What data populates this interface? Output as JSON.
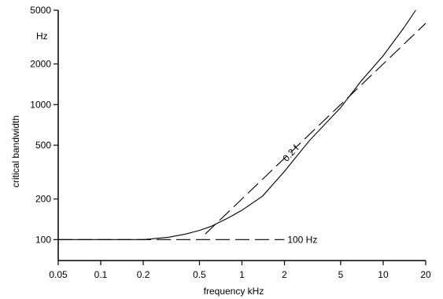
{
  "chart_data": {
    "type": "line",
    "title": "",
    "xlabel": "frequency  kHz",
    "ylabel": "critical bandwidth",
    "y_unit": "Hz",
    "x_scale": "log",
    "y_scale": "log",
    "xlim": [
      0.05,
      20
    ],
    "ylim": [
      70,
      5000
    ],
    "x_ticks": [
      0.05,
      0.1,
      0.2,
      0.5,
      1,
      2,
      5,
      10,
      20
    ],
    "x_tick_labels": [
      "0.05",
      "0.1",
      "0.2",
      "0.5",
      "1",
      "2",
      "5",
      "10",
      "20"
    ],
    "y_ticks": [
      100,
      200,
      500,
      1000,
      2000,
      5000
    ],
    "y_tick_labels": [
      "100",
      "200",
      "500",
      "1000",
      "2000",
      "5000"
    ],
    "grid": false,
    "legend": "none",
    "series": [
      {
        "style": "solid",
        "points": [
          [
            0.05,
            100
          ],
          [
            0.1,
            100
          ],
          [
            0.2,
            100
          ],
          [
            0.3,
            104
          ],
          [
            0.4,
            110
          ],
          [
            0.5,
            117
          ],
          [
            0.6,
            125
          ],
          [
            0.8,
            145
          ],
          [
            1.0,
            165
          ],
          [
            1.4,
            210
          ],
          [
            2.0,
            320
          ],
          [
            3.0,
            540
          ],
          [
            5.0,
            950
          ],
          [
            7.0,
            1500
          ],
          [
            10.0,
            2300
          ],
          [
            14.0,
            3700
          ],
          [
            17.0,
            5000
          ]
        ]
      },
      {
        "style": "dashed",
        "points": [
          [
            0.55,
            110
          ],
          [
            1,
            200
          ],
          [
            2,
            400
          ],
          [
            5,
            1000
          ],
          [
            10,
            2000
          ],
          [
            20,
            4000
          ]
        ]
      },
      {
        "style": "dashed",
        "points": [
          [
            0.05,
            100
          ],
          [
            2,
            100
          ]
        ]
      }
    ],
    "annotations": [
      {
        "text": "0.2 f",
        "x": 2.3,
        "y": 420
      },
      {
        "text": "100 Hz",
        "x": 2.1,
        "y": 100
      }
    ]
  }
}
